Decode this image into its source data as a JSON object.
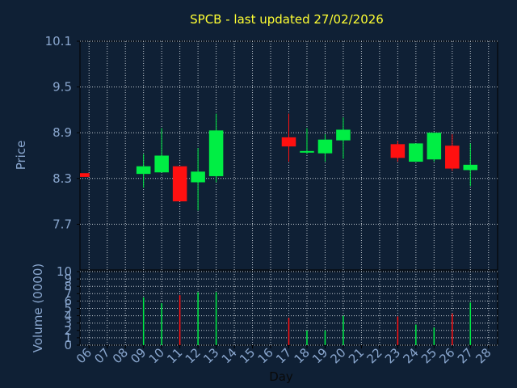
{
  "chart_data": [
    {
      "type": "candlestick",
      "title": "SPCB - last updated 27/02/2026",
      "ylabel": "Price",
      "ylim": [
        7.1,
        10.1
      ],
      "yticks": [
        "7.7",
        "8.3",
        "8.9",
        "9.5",
        "10.1"
      ],
      "grid": true,
      "colors": {
        "up": "#00ee44",
        "down": "#ff1010",
        "title": "#ffff33",
        "axis_text": "#8aa7cf",
        "grid": "#c0c8d0",
        "background": "#0f2035"
      },
      "x": [
        "06",
        "07",
        "08",
        "09",
        "10",
        "11",
        "12",
        "13",
        "14",
        "15",
        "16",
        "17",
        "18",
        "19",
        "20",
        "21",
        "22",
        "23",
        "24",
        "25",
        "26",
        "27",
        "28"
      ],
      "candles": [
        {
          "day": "06",
          "open": 8.37,
          "close": 8.32,
          "high": 8.37,
          "low": 8.32
        },
        {
          "day": "09",
          "open": 8.36,
          "close": 8.46,
          "high": 8.62,
          "low": 8.18
        },
        {
          "day": "10",
          "open": 8.38,
          "close": 8.6,
          "high": 8.96,
          "low": 8.38
        },
        {
          "day": "11",
          "open": 8.46,
          "close": 8.0,
          "high": 8.46,
          "low": 8.0
        },
        {
          "day": "12",
          "open": 8.25,
          "close": 8.39,
          "high": 8.7,
          "low": 7.88
        },
        {
          "day": "13",
          "open": 8.33,
          "close": 8.93,
          "high": 9.15,
          "low": 8.25
        },
        {
          "day": "17",
          "open": 8.84,
          "close": 8.72,
          "high": 9.15,
          "low": 8.52
        },
        {
          "day": "18",
          "open": 8.65,
          "close": 8.66,
          "high": 8.96,
          "low": 8.62
        },
        {
          "day": "19",
          "open": 8.63,
          "close": 8.81,
          "high": 8.88,
          "low": 8.52
        },
        {
          "day": "20",
          "open": 8.8,
          "close": 8.94,
          "high": 9.1,
          "low": 8.56
        },
        {
          "day": "23",
          "open": 8.75,
          "close": 8.57,
          "high": 8.79,
          "low": 8.52
        },
        {
          "day": "24",
          "open": 8.52,
          "close": 8.76,
          "high": 8.76,
          "low": 8.52
        },
        {
          "day": "25",
          "open": 8.55,
          "close": 8.9,
          "high": 8.9,
          "low": 8.52
        },
        {
          "day": "26",
          "open": 8.73,
          "close": 8.43,
          "high": 8.88,
          "low": 8.4
        },
        {
          "day": "27",
          "open": 8.41,
          "close": 8.48,
          "high": 8.76,
          "low": 8.2
        }
      ]
    },
    {
      "type": "bar",
      "xlabel": "Day",
      "ylabel": "Volume (0000)",
      "ylim": [
        0,
        10
      ],
      "yticks": [
        "0",
        "1",
        "2",
        "3",
        "4",
        "5",
        "6",
        "7",
        "8",
        "9",
        "10"
      ],
      "x": [
        "06",
        "07",
        "08",
        "09",
        "10",
        "11",
        "12",
        "13",
        "14",
        "15",
        "16",
        "17",
        "18",
        "19",
        "20",
        "21",
        "22",
        "23",
        "24",
        "25",
        "26",
        "27",
        "28"
      ],
      "bars": [
        {
          "day": "09",
          "value": 6.5,
          "direction": "up"
        },
        {
          "day": "10",
          "value": 5.7,
          "direction": "up"
        },
        {
          "day": "11",
          "value": 6.8,
          "direction": "down"
        },
        {
          "day": "12",
          "value": 7.2,
          "direction": "up"
        },
        {
          "day": "13",
          "value": 7.2,
          "direction": "up"
        },
        {
          "day": "17",
          "value": 3.7,
          "direction": "down"
        },
        {
          "day": "18",
          "value": 2.0,
          "direction": "up"
        },
        {
          "day": "19",
          "value": 2.0,
          "direction": "up"
        },
        {
          "day": "20",
          "value": 4.0,
          "direction": "up"
        },
        {
          "day": "23",
          "value": 3.9,
          "direction": "down"
        },
        {
          "day": "24",
          "value": 2.8,
          "direction": "up"
        },
        {
          "day": "25",
          "value": 2.4,
          "direction": "up"
        },
        {
          "day": "26",
          "value": 4.3,
          "direction": "down"
        },
        {
          "day": "27",
          "value": 5.8,
          "direction": "up"
        }
      ]
    }
  ]
}
